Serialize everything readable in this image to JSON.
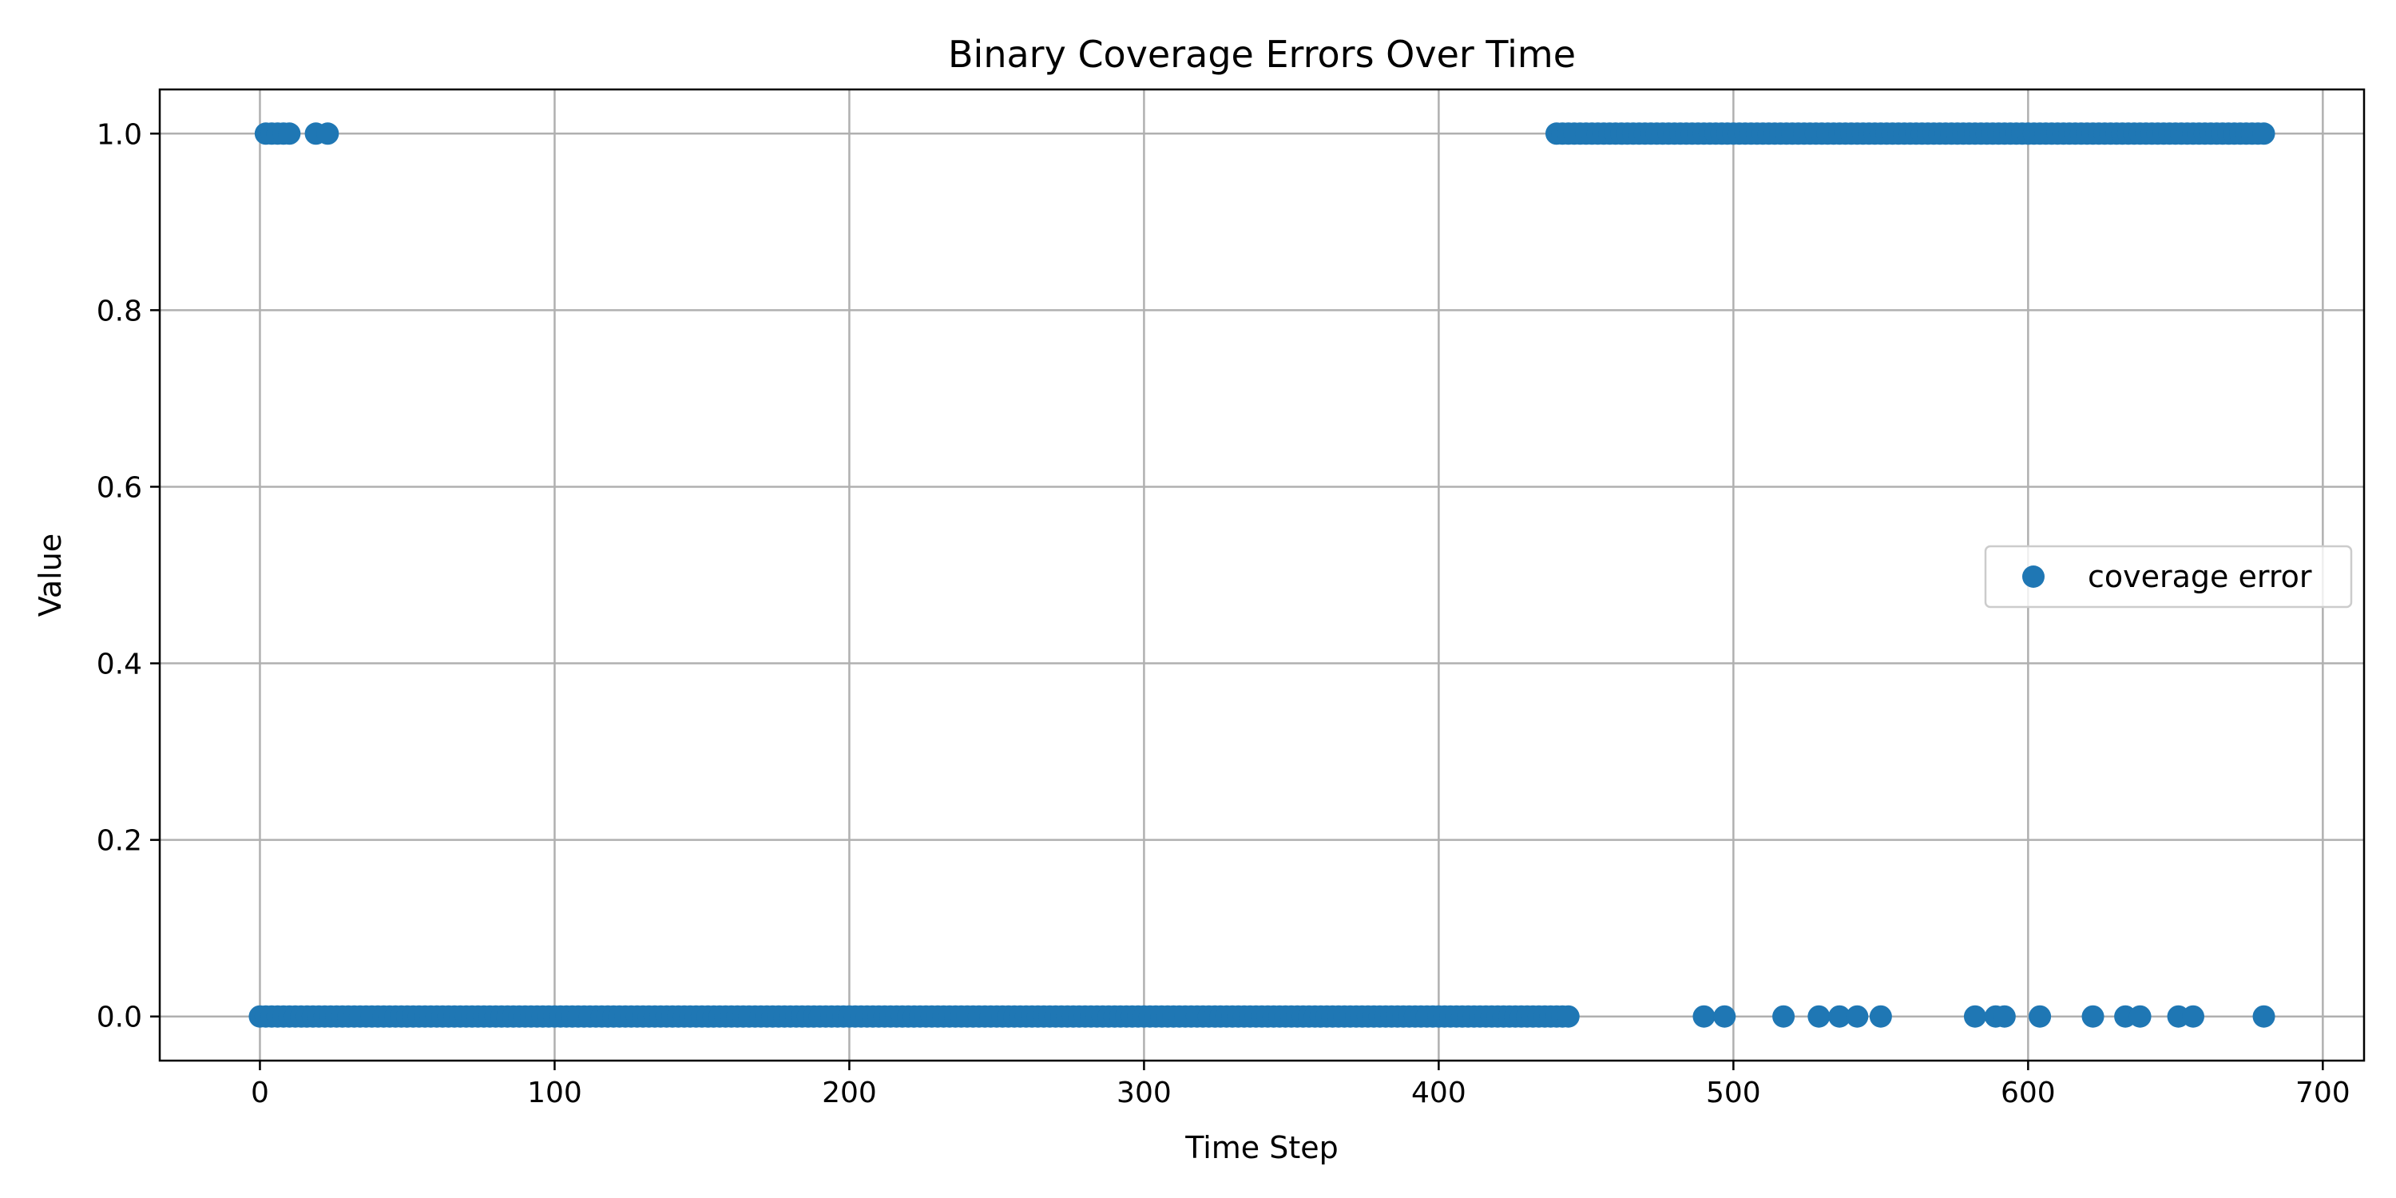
{
  "chart_data": {
    "type": "scatter",
    "title": "Binary Coverage Errors Over Time",
    "xlabel": "Time Step",
    "ylabel": "Value",
    "xlim": [
      -34,
      714
    ],
    "ylim": [
      -0.05,
      1.05
    ],
    "xticks": [
      0,
      100,
      200,
      300,
      400,
      500,
      600,
      700
    ],
    "yticks": [
      0.0,
      0.2,
      0.4,
      0.6,
      0.8,
      1.0
    ],
    "xtick_labels": [
      "0",
      "100",
      "200",
      "300",
      "400",
      "500",
      "600",
      "700"
    ],
    "ytick_labels": [
      "0.0",
      "0.2",
      "0.4",
      "0.6",
      "0.8",
      "1.0"
    ],
    "grid": true,
    "legend_position": "center-right",
    "marker_color": "#1f77b4",
    "series": [
      {
        "name": "coverage error",
        "points_value_1": {
          "x": [
            2,
            4,
            6,
            8,
            10,
            19,
            23,
            440,
            442,
            444,
            446,
            448,
            450,
            452,
            454,
            456,
            458,
            460,
            462,
            464,
            466,
            468,
            470,
            472,
            474,
            476,
            478,
            480,
            482,
            484,
            486,
            488,
            490,
            492,
            494,
            496,
            498,
            500,
            502,
            504,
            506,
            508,
            510,
            512,
            514,
            516,
            518,
            520,
            522,
            524,
            526,
            528,
            530,
            532,
            534,
            536,
            538,
            540,
            542,
            544,
            546,
            548,
            550,
            552,
            554,
            556,
            558,
            560,
            562,
            564,
            566,
            568,
            570,
            572,
            574,
            576,
            578,
            580,
            582,
            584,
            586,
            588,
            590,
            592,
            594,
            596,
            598,
            600,
            602,
            604,
            606,
            608,
            610,
            612,
            614,
            616,
            618,
            620,
            622,
            624,
            626,
            628,
            630,
            632,
            634,
            636,
            638,
            640,
            642,
            644,
            646,
            648,
            650,
            652,
            654,
            656,
            658,
            660,
            662,
            664,
            666,
            668,
            670,
            672,
            674,
            676,
            678,
            680
          ],
          "y": 1.0
        },
        "points_value_0": {
          "x": [
            0,
            2,
            4,
            6,
            8,
            10,
            12,
            14,
            16,
            18,
            20,
            22,
            24,
            26,
            28,
            30,
            32,
            34,
            36,
            38,
            40,
            42,
            44,
            46,
            48,
            50,
            52,
            54,
            56,
            58,
            60,
            62,
            64,
            66,
            68,
            70,
            72,
            74,
            76,
            78,
            80,
            82,
            84,
            86,
            88,
            90,
            92,
            94,
            96,
            98,
            100,
            102,
            104,
            106,
            108,
            110,
            112,
            114,
            116,
            118,
            120,
            122,
            124,
            126,
            128,
            130,
            132,
            134,
            136,
            138,
            140,
            142,
            144,
            146,
            148,
            150,
            152,
            154,
            156,
            158,
            160,
            162,
            164,
            166,
            168,
            170,
            172,
            174,
            176,
            178,
            180,
            182,
            184,
            186,
            188,
            190,
            192,
            194,
            196,
            198,
            200,
            202,
            204,
            206,
            208,
            210,
            212,
            214,
            216,
            218,
            220,
            222,
            224,
            226,
            228,
            230,
            232,
            234,
            236,
            238,
            240,
            242,
            244,
            246,
            248,
            250,
            252,
            254,
            256,
            258,
            260,
            262,
            264,
            266,
            268,
            270,
            272,
            274,
            276,
            278,
            280,
            282,
            284,
            286,
            288,
            290,
            292,
            294,
            296,
            298,
            300,
            302,
            304,
            306,
            308,
            310,
            312,
            314,
            316,
            318,
            320,
            322,
            324,
            326,
            328,
            330,
            332,
            334,
            336,
            338,
            340,
            342,
            344,
            346,
            348,
            350,
            352,
            354,
            356,
            358,
            360,
            362,
            364,
            366,
            368,
            370,
            372,
            374,
            376,
            378,
            380,
            382,
            384,
            386,
            388,
            390,
            392,
            394,
            396,
            398,
            400,
            402,
            404,
            406,
            408,
            410,
            412,
            414,
            416,
            418,
            420,
            422,
            424,
            426,
            428,
            430,
            432,
            434,
            436,
            438,
            440,
            442,
            444,
            490,
            497,
            517,
            529,
            536,
            542,
            550,
            582,
            589,
            592,
            604,
            622,
            633,
            638,
            651,
            656,
            680
          ],
          "y": 0.0
        }
      }
    ]
  }
}
